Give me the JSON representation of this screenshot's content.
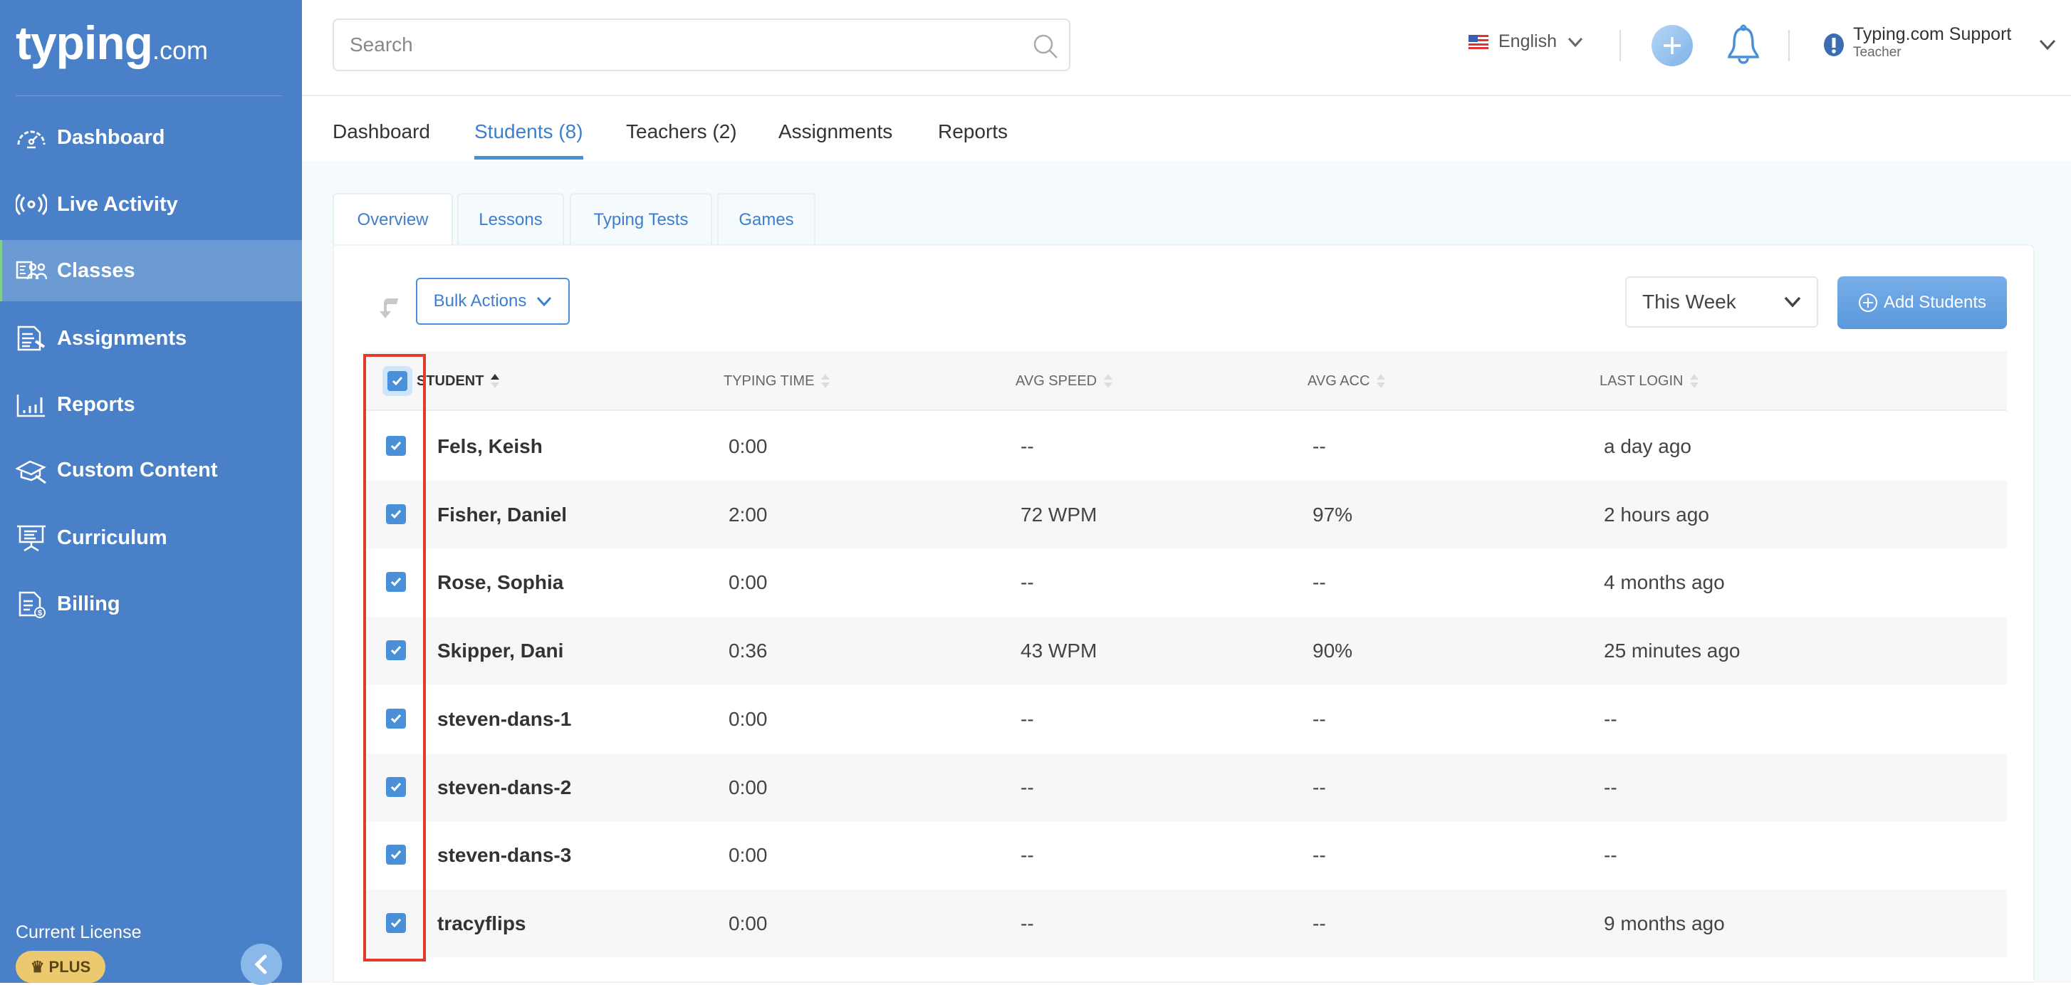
{
  "sidebar": {
    "logo": {
      "main": "typing",
      "suffix": ".com"
    },
    "items": [
      {
        "label": "Dashboard",
        "icon": "speedometer-icon"
      },
      {
        "label": "Live Activity",
        "icon": "broadcast-icon"
      },
      {
        "label": "Classes",
        "icon": "classes-icon",
        "active": true
      },
      {
        "label": "Assignments",
        "icon": "assignment-icon"
      },
      {
        "label": "Reports",
        "icon": "bar-chart-icon"
      },
      {
        "label": "Custom Content",
        "icon": "custom-content-icon"
      },
      {
        "label": "Curriculum",
        "icon": "presentation-board-icon"
      },
      {
        "label": "Billing",
        "icon": "billing-icon"
      }
    ],
    "license_label": "Current License",
    "license_badge": "PLUS"
  },
  "header": {
    "search_placeholder": "Search",
    "language": "English",
    "user_name": "Typing.com Support",
    "user_role": "Teacher"
  },
  "tabs": [
    {
      "label": "Dashboard"
    },
    {
      "label": "Students (8)",
      "active": true
    },
    {
      "label": "Teachers (2)"
    },
    {
      "label": "Assignments"
    },
    {
      "label": "Reports"
    }
  ],
  "subtabs": [
    {
      "label": "Overview",
      "active": true
    },
    {
      "label": "Lessons"
    },
    {
      "label": "Typing Tests"
    },
    {
      "label": "Games"
    }
  ],
  "toolbar": {
    "bulk_actions": "Bulk Actions",
    "period": "This Week",
    "add_students": "Add Students"
  },
  "table": {
    "columns": [
      "STUDENT",
      "TYPING TIME",
      "AVG SPEED",
      "AVG ACC",
      "LAST LOGIN"
    ],
    "select_all_checked": true,
    "rows": [
      {
        "name": "Fels, Keish",
        "time": "0:00",
        "speed": "--",
        "acc": "--",
        "login": "a day ago",
        "checked": true
      },
      {
        "name": "Fisher, Daniel",
        "time": "2:00",
        "speed": "72 WPM",
        "acc": "97%",
        "login": "2 hours ago",
        "checked": true
      },
      {
        "name": "Rose, Sophia",
        "time": "0:00",
        "speed": "--",
        "acc": "--",
        "login": "4 months ago",
        "checked": true
      },
      {
        "name": "Skipper, Dani",
        "time": "0:36",
        "speed": "43 WPM",
        "acc": "90%",
        "login": "25 minutes ago",
        "checked": true
      },
      {
        "name": "steven-dans-1",
        "time": "0:00",
        "speed": "--",
        "acc": "--",
        "login": "--",
        "checked": true
      },
      {
        "name": "steven-dans-2",
        "time": "0:00",
        "speed": "--",
        "acc": "--",
        "login": "--",
        "checked": true
      },
      {
        "name": "steven-dans-3",
        "time": "0:00",
        "speed": "--",
        "acc": "--",
        "login": "--",
        "checked": true
      },
      {
        "name": "tracyflips",
        "time": "0:00",
        "speed": "--",
        "acc": "--",
        "login": "9 months ago",
        "checked": true
      }
    ]
  },
  "colors": {
    "sidebar": "#4a80c8",
    "accent": "#4a90d9",
    "highlight": "#e23b2e",
    "badge": "#ecc96e"
  }
}
